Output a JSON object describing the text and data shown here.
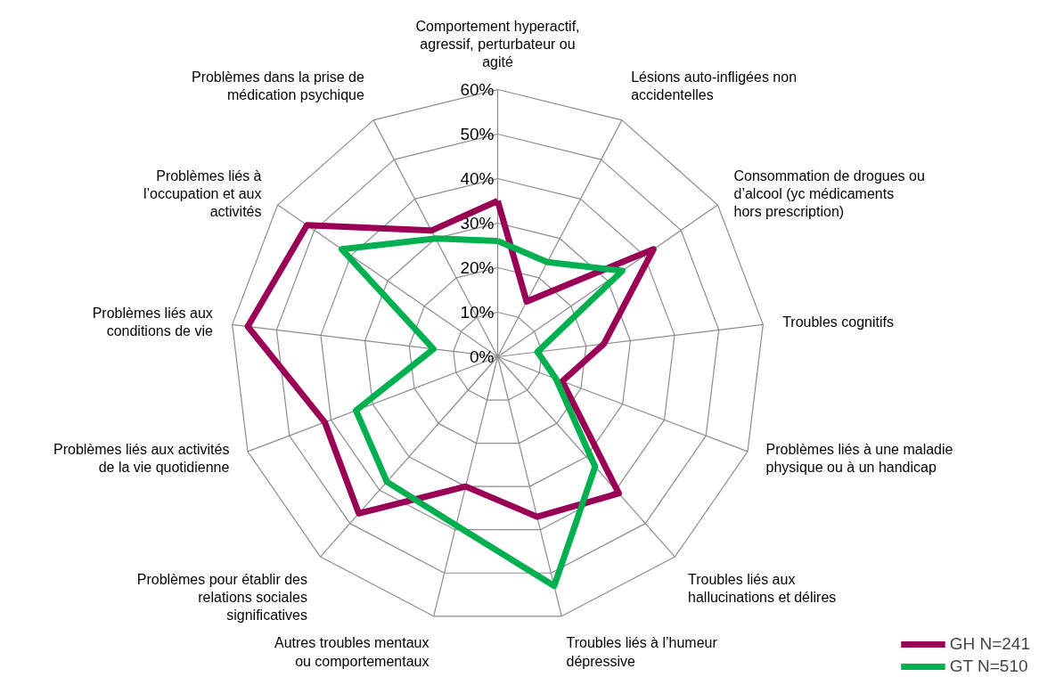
{
  "chart_data": {
    "type": "radar",
    "categories": [
      "Comportement hyperactif, agressif, perturbateur ou agité",
      "Lésions auto-infligées non accidentelles",
      "Consommation de drogues ou d’alcool (yc médicaments hors prescription)",
      "Troubles cognitifs",
      "Problèmes liés à une maladie physique ou à un handicap",
      "Troubles liés aux hallucinations et délires",
      "Troubles liés à l’humeur dépressive",
      "Autres troubles mentaux ou comportementaux",
      "Problèmes pour établir des relations sociales significatives",
      "Problèmes liés aux activités de la vie quotidienne",
      "Problèmes liés aux conditions de vie",
      "Problèmes liés à l’occupation et aux activités",
      "Problèmes dans la prise de médication psychique"
    ],
    "series": [
      {
        "name": "GH N=241",
        "color": "#990055",
        "values": [
          35,
          14,
          42.5,
          24,
          15.5,
          41,
          37,
          30,
          47,
          41.5,
          56.5,
          52,
          32
        ]
      },
      {
        "name": "GT N=510",
        "color": "#00b050",
        "values": [
          26,
          24,
          34,
          9,
          14,
          33,
          53,
          39,
          37.5,
          34,
          14.5,
          42.5,
          30
        ]
      }
    ],
    "ylim": [
      0,
      60
    ],
    "yticks": [
      {
        "value": 0,
        "label": "0%"
      },
      {
        "value": 10,
        "label": "10%"
      },
      {
        "value": 20,
        "label": "20%"
      },
      {
        "value": 30,
        "label": "30%"
      },
      {
        "value": 40,
        "label": "40%"
      },
      {
        "value": 50,
        "label": "50%"
      },
      {
        "value": 60,
        "label": "60%"
      }
    ],
    "grid": true,
    "legend": "bottom right",
    "line_style": "solid",
    "marker": "none"
  }
}
